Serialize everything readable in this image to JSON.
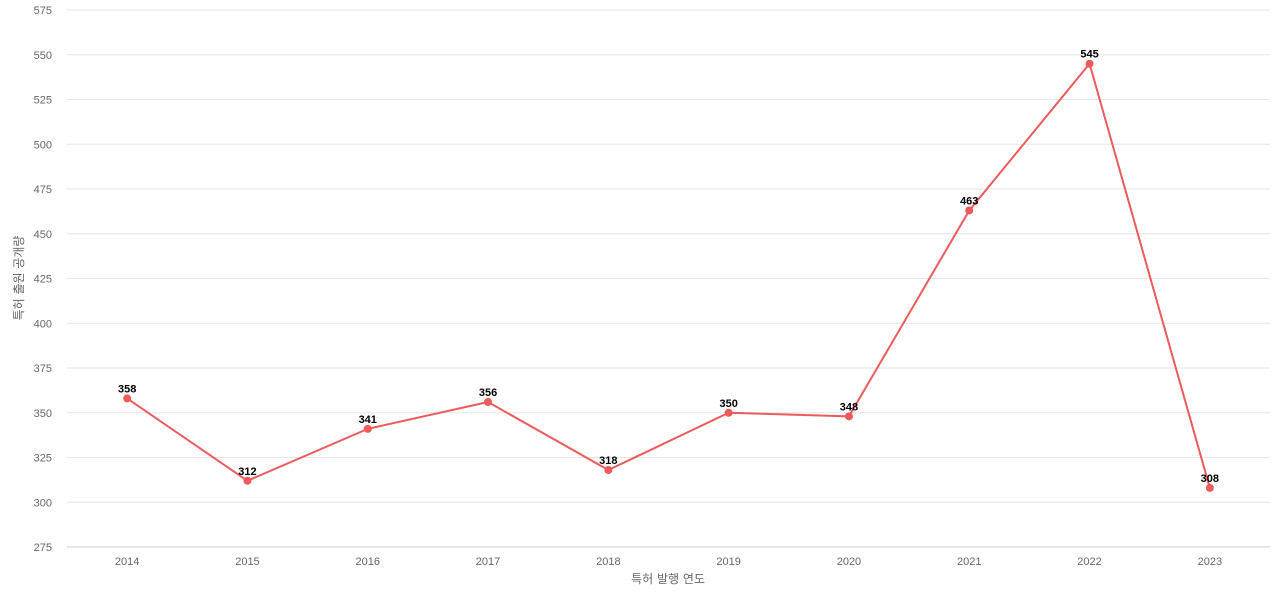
{
  "chart_data": {
    "type": "line",
    "title": "",
    "xlabel": "특허 발행 연도",
    "ylabel": "특허 출원 공개량",
    "categories": [
      "2014",
      "2015",
      "2016",
      "2017",
      "2018",
      "2019",
      "2020",
      "2021",
      "2022",
      "2023"
    ],
    "series": [
      {
        "values": [
          358,
          312,
          341,
          356,
          318,
          350,
          348,
          463,
          545,
          308
        ],
        "color": "#ec5b5b"
      }
    ],
    "ylim": [
      275,
      575
    ],
    "yticks": [
      275,
      300,
      325,
      350,
      375,
      400,
      425,
      450,
      475,
      500,
      525,
      550,
      575
    ],
    "grid": true,
    "data_labels": true,
    "legend": "none"
  }
}
